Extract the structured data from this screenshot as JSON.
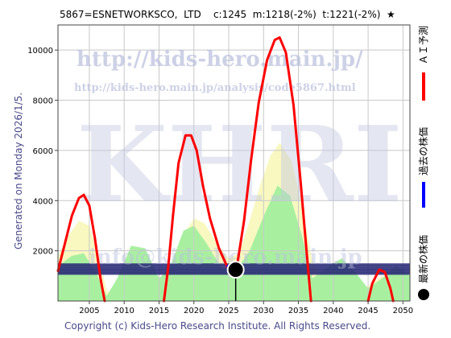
{
  "header": {
    "title": "5867=ESNETWORKSCO,  LTD    c:1245  m:1218(-2%)  t:1221(-2%)  ★"
  },
  "side_label": "Generated on Monday 2026/1/5.",
  "footer": "Copyright (c) Kids-Hero Research Institute. All Rights Reserved.",
  "watermarks": {
    "url": "http://kids-hero.main.jp/",
    "analysis_url": "http://kids-hero.main.jp/analysis/code5867.html",
    "big": "KHRI",
    "email": "info@kids-hero.main.jp"
  },
  "legend": [
    {
      "label": "ＡＩ予測",
      "color": "#ff0000",
      "kind": "line"
    },
    {
      "label": "過去の株価",
      "color": "#0000ff",
      "kind": "line"
    },
    {
      "label": "最新の株価",
      "color": "#000000",
      "kind": "dot"
    }
  ],
  "chart_data": {
    "type": "line",
    "title": "5867=ESNETWORKSCO,  LTD    c:1245  m:1218(-2%)  t:1221(-2%)  ★",
    "xlabel": "",
    "ylabel": "",
    "xlim": [
      2000.5,
      2051
    ],
    "ylim": [
      0,
      11000
    ],
    "x_ticks": [
      2005,
      2010,
      2015,
      2020,
      2025,
      2030,
      2035,
      2040,
      2045,
      2050
    ],
    "y_ticks": [
      2000,
      4000,
      6000,
      8000,
      10000
    ],
    "grid": true,
    "series": [
      {
        "name": "ＡＩ予測",
        "color": "#ff0000",
        "points": [
          [
            2000.5,
            1200
          ],
          [
            2001.5,
            2300
          ],
          [
            2002.5,
            3400
          ],
          [
            2003.5,
            4100
          ],
          [
            2004.2,
            4230
          ],
          [
            2005,
            3800
          ],
          [
            2005.8,
            2500
          ],
          [
            2006.6,
            900
          ],
          [
            2007.2,
            0
          ],
          [
            2015.7,
            0
          ],
          [
            2016.3,
            1300
          ],
          [
            2017,
            3400
          ],
          [
            2017.8,
            5500
          ],
          [
            2018.8,
            6600
          ],
          [
            2019.6,
            6600
          ],
          [
            2020.4,
            6000
          ],
          [
            2021.3,
            4600
          ],
          [
            2022.3,
            3300
          ],
          [
            2023.6,
            2100
          ],
          [
            2024.8,
            1350
          ],
          [
            2025.6,
            1245
          ],
          [
            2026.3,
            1600
          ],
          [
            2027.2,
            3200
          ],
          [
            2028.2,
            5600
          ],
          [
            2029.3,
            7900
          ],
          [
            2030.5,
            9600
          ],
          [
            2031.6,
            10400
          ],
          [
            2032.3,
            10500
          ],
          [
            2033.2,
            9900
          ],
          [
            2034.3,
            7800
          ],
          [
            2035.3,
            4800
          ],
          [
            2036.1,
            2200
          ],
          [
            2036.8,
            0
          ],
          [
            2045,
            0
          ],
          [
            2045.6,
            700
          ],
          [
            2046.6,
            1250
          ],
          [
            2047.4,
            1150
          ],
          [
            2048.2,
            500
          ],
          [
            2048.6,
            0
          ]
        ]
      },
      {
        "name": "過去の株価",
        "color": "#0000ff",
        "points": [
          [
            2024.8,
            1400
          ],
          [
            2025.2,
            1150
          ],
          [
            2025.6,
            1300
          ],
          [
            2026,
            1245
          ]
        ]
      }
    ],
    "latest": {
      "x": 2026,
      "y": 1245
    },
    "yellow_band": [
      [
        2000.5,
        1800
      ],
      [
        2002,
        2600
      ],
      [
        2003.5,
        3200
      ],
      [
        2005,
        3000
      ],
      [
        2006.5,
        1600
      ],
      [
        2007.5,
        400
      ],
      [
        2010,
        200
      ],
      [
        2013,
        400
      ],
      [
        2015.5,
        700
      ],
      [
        2017,
        1600
      ],
      [
        2018.5,
        2600
      ],
      [
        2020,
        3300
      ],
      [
        2021.5,
        3100
      ],
      [
        2023.5,
        2200
      ],
      [
        2025,
        1700
      ],
      [
        2026.5,
        1900
      ],
      [
        2028,
        3200
      ],
      [
        2029.5,
        4600
      ],
      [
        2031,
        5800
      ],
      [
        2032.3,
        6300
      ],
      [
        2034,
        5600
      ],
      [
        2035.5,
        3800
      ],
      [
        2037,
        1600
      ],
      [
        2039,
        700
      ],
      [
        2042,
        400
      ],
      [
        2045,
        600
      ],
      [
        2047,
        1000
      ],
      [
        2049,
        800
      ],
      [
        2051,
        500
      ]
    ],
    "green_band": [
      [
        2000.5,
        1400
      ],
      [
        2002.5,
        1800
      ],
      [
        2004.2,
        1900
      ],
      [
        2006,
        1100
      ],
      [
        2007.5,
        200
      ],
      [
        2009,
        900
      ],
      [
        2011,
        2200
      ],
      [
        2013,
        2100
      ],
      [
        2015,
        900
      ],
      [
        2016.5,
        1300
      ],
      [
        2018.5,
        2800
      ],
      [
        2020,
        3000
      ],
      [
        2021.8,
        2300
      ],
      [
        2024,
        1300
      ],
      [
        2026,
        1200
      ],
      [
        2028,
        2000
      ],
      [
        2030.2,
        3500
      ],
      [
        2032,
        4600
      ],
      [
        2033.8,
        4200
      ],
      [
        2035.5,
        2600
      ],
      [
        2037,
        900
      ],
      [
        2039,
        1300
      ],
      [
        2041.2,
        1700
      ],
      [
        2043,
        1200
      ],
      [
        2045,
        500
      ],
      [
        2047,
        900
      ],
      [
        2049,
        1400
      ],
      [
        2051,
        1000
      ]
    ],
    "history_lines": [
      1450,
      1380,
      1300,
      1230,
      1160,
      1090
    ]
  }
}
